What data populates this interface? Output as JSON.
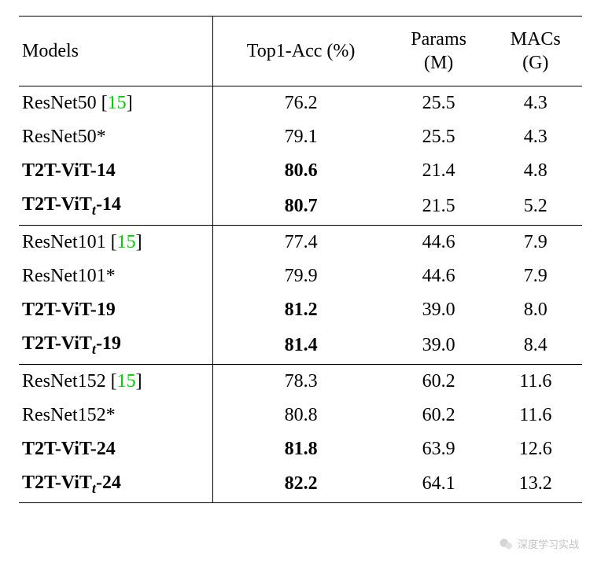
{
  "table": {
    "background_color": "#ffffff",
    "text_color": "#000000",
    "cite_color": "#00d000",
    "font_family": "Times New Roman",
    "font_size_pt": 18,
    "border_color": "#000000",
    "rule_width_outer": 1.5,
    "rule_width_inner": 1,
    "columns": [
      {
        "key": "models",
        "label_top": "Models",
        "label_bottom": "",
        "align": "left"
      },
      {
        "key": "top1",
        "label_top": "Top1-Acc (%)",
        "label_bottom": "",
        "align": "center"
      },
      {
        "key": "params",
        "label_top": "Params",
        "label_bottom": "(M)",
        "align": "center"
      },
      {
        "key": "macs",
        "label_top": "MACs",
        "label_bottom": "(G)",
        "align": "center"
      }
    ],
    "groups": [
      {
        "rows": [
          {
            "model_plain": "ResNet50 ",
            "cite": "[15]",
            "suffix": "",
            "subscript": "",
            "bold": false,
            "top1": "76.2",
            "params": "25.5",
            "macs": "4.3"
          },
          {
            "model_plain": "ResNet50*",
            "cite": "",
            "suffix": "",
            "subscript": "",
            "bold": false,
            "top1": "79.1",
            "params": "25.5",
            "macs": "4.3"
          },
          {
            "model_plain": "T2T-ViT-14",
            "cite": "",
            "suffix": "",
            "subscript": "",
            "bold": true,
            "top1": "80.6",
            "params": "21.4",
            "macs": "4.8"
          },
          {
            "model_plain": "T2T-ViT",
            "cite": "",
            "suffix": "-14",
            "subscript": "t",
            "bold": true,
            "top1": "80.7",
            "params": "21.5",
            "macs": "5.2"
          }
        ]
      },
      {
        "rows": [
          {
            "model_plain": "ResNet101 ",
            "cite": "[15]",
            "suffix": "",
            "subscript": "",
            "bold": false,
            "top1": "77.4",
            "params": "44.6",
            "macs": "7.9"
          },
          {
            "model_plain": "ResNet101*",
            "cite": "",
            "suffix": "",
            "subscript": "",
            "bold": false,
            "top1": "79.9",
            "params": "44.6",
            "macs": "7.9"
          },
          {
            "model_plain": "T2T-ViT-19",
            "cite": "",
            "suffix": "",
            "subscript": "",
            "bold": true,
            "top1": "81.2",
            "params": "39.0",
            "macs": "8.0"
          },
          {
            "model_plain": "T2T-ViT",
            "cite": "",
            "suffix": "-19",
            "subscript": "t",
            "bold": true,
            "top1": "81.4",
            "params": "39.0",
            "macs": "8.4"
          }
        ]
      },
      {
        "rows": [
          {
            "model_plain": "ResNet152 ",
            "cite": "[15]",
            "suffix": "",
            "subscript": "",
            "bold": false,
            "top1": "78.3",
            "params": "60.2",
            "macs": "11.6"
          },
          {
            "model_plain": "ResNet152*",
            "cite": "",
            "suffix": "",
            "subscript": "",
            "bold": false,
            "top1": "80.8",
            "params": "60.2",
            "macs": "11.6"
          },
          {
            "model_plain": "T2T-ViT-24",
            "cite": "",
            "suffix": "",
            "subscript": "",
            "bold": true,
            "top1": "81.8",
            "params": "63.9",
            "macs": "12.6"
          },
          {
            "model_plain": "T2T-ViT",
            "cite": "",
            "suffix": "-24",
            "subscript": "t",
            "bold": true,
            "top1": "82.2",
            "params": "64.1",
            "macs": "13.2"
          }
        ]
      }
    ]
  },
  "watermark": {
    "text": "深度学习实战"
  }
}
